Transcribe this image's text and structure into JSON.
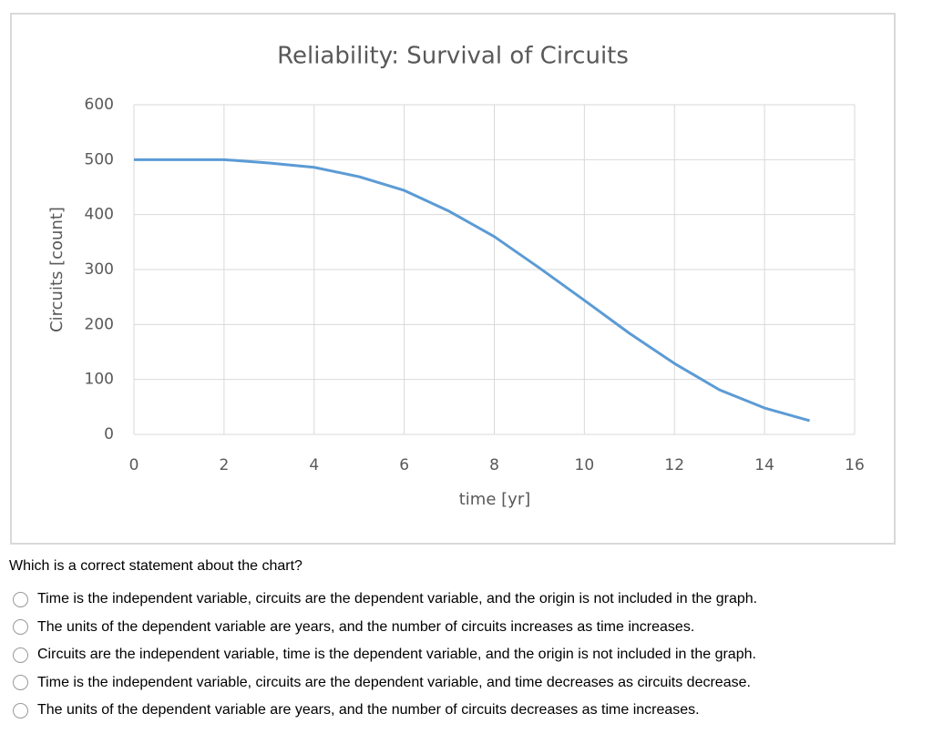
{
  "chart_data": {
    "type": "line",
    "title": "Reliability: Survival of Circuits",
    "x_label": "time [yr]",
    "y_label": "Circuits [count]",
    "x": [
      0,
      1,
      2,
      3,
      4,
      5,
      6,
      7,
      8,
      9,
      10,
      11,
      12,
      13,
      14,
      15
    ],
    "series": [
      {
        "color": "#5b9bd5",
        "values": [
          500,
          500,
          500,
          494,
          486,
          469,
          444,
          406,
          360,
          303,
          244,
          184,
          129,
          81,
          48,
          25
        ]
      }
    ],
    "xlim": [
      0,
      16
    ],
    "xticks": [
      0,
      2,
      4,
      6,
      8,
      10,
      12,
      14,
      16
    ],
    "ylim": [
      0,
      600
    ],
    "yticks": [
      0,
      100,
      200,
      300,
      400,
      500,
      600
    ],
    "grid": true
  },
  "question": {
    "prompt": "Which is a correct statement about the chart?",
    "options": [
      "Time is the independent variable, circuits are the dependent variable, and the origin is not included in the graph.",
      "The units of the dependent variable are years, and the number of circuits increases as time increases.",
      "Circuits are the independent variable, time is the dependent variable, and the origin is not included in the graph.",
      "Time is the independent variable, circuits are the dependent variable, and time decreases as circuits decrease.",
      "The units of the dependent variable are years, and the number of circuits decreases as time increases."
    ]
  }
}
